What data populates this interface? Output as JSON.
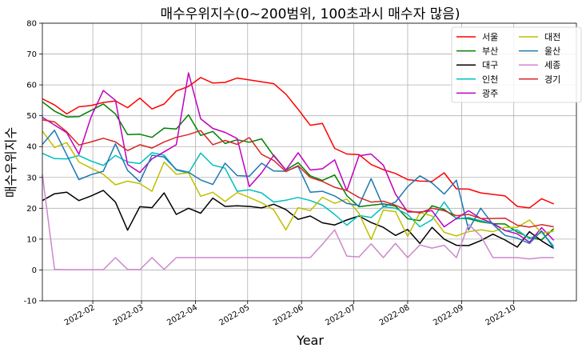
{
  "chart_data": {
    "type": "line",
    "title": "매수우위지수(0~200범위, 100초과시 매수자 많음)",
    "xlabel": "Year",
    "ylabel": "매수우위지수",
    "ylim": [
      -10,
      80
    ],
    "yticks": [
      -10,
      0,
      10,
      20,
      30,
      40,
      50,
      60,
      70,
      80
    ],
    "xlim": [
      "2022-01-03",
      "2022-11-06"
    ],
    "xticks": [
      {
        "date": "2022-02-01",
        "label": "2022-02"
      },
      {
        "date": "2022-03-01",
        "label": "2022-03"
      },
      {
        "date": "2022-04-01",
        "label": "2022-04"
      },
      {
        "date": "2022-05-01",
        "label": "2022-05"
      },
      {
        "date": "2022-06-01",
        "label": "2022-06"
      },
      {
        "date": "2022-07-01",
        "label": "2022-07"
      },
      {
        "date": "2022-08-01",
        "label": "2022-08"
      },
      {
        "date": "2022-09-01",
        "label": "2022-09"
      },
      {
        "date": "2022-10-01",
        "label": "2022-10"
      }
    ],
    "grid": true,
    "legend_position": "top-right",
    "x": [
      "2022-01-03",
      "2022-01-10",
      "2022-01-17",
      "2022-01-24",
      "2022-01-31",
      "2022-02-07",
      "2022-02-14",
      "2022-02-21",
      "2022-02-28",
      "2022-03-07",
      "2022-03-14",
      "2022-03-21",
      "2022-03-28",
      "2022-04-04",
      "2022-04-11",
      "2022-04-18",
      "2022-04-25",
      "2022-05-02",
      "2022-05-09",
      "2022-05-16",
      "2022-05-23",
      "2022-05-30",
      "2022-06-06",
      "2022-06-13",
      "2022-06-20",
      "2022-06-27",
      "2022-07-04",
      "2022-07-11",
      "2022-07-18",
      "2022-07-25",
      "2022-08-01",
      "2022-08-08",
      "2022-08-15",
      "2022-08-22",
      "2022-08-29",
      "2022-09-05",
      "2022-09-12",
      "2022-09-19",
      "2022-09-26",
      "2022-10-03",
      "2022-10-10",
      "2022-10-17",
      "2022-10-24"
    ],
    "series": [
      {
        "name": "서울",
        "color": "#ff0000",
        "values": [
          55.5,
          53.5,
          50.6,
          52.9,
          53.3,
          54.3,
          54.8,
          52.6,
          55.7,
          52.2,
          53.8,
          58.0,
          59.5,
          62.4,
          60.6,
          60.8,
          62.2,
          61.6,
          61.0,
          60.4,
          57.0,
          52.1,
          46.9,
          47.5,
          39.4,
          37.6,
          37.4,
          34.2,
          32.5,
          31.3,
          29.3,
          28.8,
          28.7,
          31.5,
          26.3,
          26.2,
          25.0,
          24.5,
          24.0,
          20.6,
          20.1,
          23.1,
          21.4
        ]
      },
      {
        "name": "부산",
        "color": "#008000",
        "values": [
          54.5,
          51.5,
          49.6,
          49.7,
          51.7,
          53.8,
          50.6,
          43.9,
          44.0,
          43.0,
          46.0,
          45.7,
          50.3,
          43.6,
          44.9,
          41.0,
          42.2,
          41.4,
          42.5,
          37.0,
          32.4,
          34.8,
          30.5,
          29.0,
          30.8,
          24.1,
          20.5,
          21.0,
          21.4,
          20.7,
          16.6,
          16.0,
          20.8,
          19.6,
          16.8,
          16.6,
          15.6,
          15.0,
          14.9,
          12.3,
          10.5,
          9.8,
          13.4
        ]
      },
      {
        "name": "대구",
        "color": "#000000",
        "values": [
          22.5,
          24.7,
          25.2,
          22.5,
          24.0,
          25.8,
          22.0,
          12.9,
          20.5,
          20.2,
          25.0,
          18.0,
          20.0,
          18.4,
          23.3,
          20.6,
          20.8,
          20.6,
          20.1,
          21.3,
          19.6,
          16.4,
          17.5,
          15.3,
          14.6,
          16.2,
          17.5,
          15.4,
          13.8,
          11.2,
          13.1,
          8.6,
          13.8,
          10.0,
          8.0,
          7.9,
          9.5,
          11.6,
          9.7,
          7.4,
          12.4,
          9.4,
          7.0
        ]
      },
      {
        "name": "인천",
        "color": "#00bfbf",
        "values": [
          37.8,
          36.1,
          36.0,
          37.1,
          35.3,
          33.9,
          37.1,
          35.0,
          34.5,
          38.0,
          37.2,
          32.4,
          31.4,
          37.9,
          34.0,
          33.0,
          25.5,
          26.0,
          25.0,
          22.0,
          22.6,
          23.5,
          22.5,
          21.0,
          18.0,
          14.5,
          17.7,
          17.0,
          20.5,
          20.0,
          18.0,
          14.0,
          16.3,
          22.0,
          16.5,
          17.0,
          16.0,
          15.0,
          12.7,
          13.0,
          10.1,
          12.2,
          7.7
        ]
      },
      {
        "name": "광주",
        "color": "#bf00bf",
        "values": [
          49.5,
          47.0,
          44.5,
          37.5,
          49.6,
          58.2,
          55.0,
          34.2,
          31.6,
          36.0,
          38.3,
          40.6,
          63.9,
          49.0,
          45.9,
          44.6,
          42.6,
          27.0,
          31.5,
          37.2,
          32.4,
          38.0,
          32.4,
          32.8,
          35.7,
          25.7,
          37.0,
          37.6,
          34.0,
          24.6,
          18.8,
          18.8,
          19.2,
          14.0,
          16.7,
          19.2,
          16.7,
          15.1,
          12.8,
          11.7,
          9.0,
          13.7,
          9.6
        ]
      },
      {
        "name": "대전",
        "color": "#bfbf00",
        "values": [
          45.0,
          39.7,
          41.3,
          35.0,
          33.0,
          31.0,
          27.6,
          28.8,
          28.0,
          25.5,
          35.0,
          31.0,
          31.5,
          23.9,
          25.2,
          22.2,
          25.1,
          23.5,
          21.8,
          19.5,
          13.0,
          20.2,
          19.2,
          23.6,
          21.6,
          23.0,
          18.4,
          9.9,
          19.4,
          18.9,
          10.9,
          18.6,
          17.5,
          12.2,
          11.0,
          12.4,
          13.0,
          12.4,
          13.8,
          13.8,
          16.2,
          12.0,
          12.5
        ]
      },
      {
        "name": "울산",
        "color": "#1f77b4",
        "values": [
          40.7,
          45.3,
          37.3,
          29.3,
          30.9,
          32.0,
          40.9,
          32.3,
          28.6,
          37.2,
          36.6,
          32.6,
          31.7,
          29.2,
          27.7,
          34.6,
          30.6,
          30.4,
          34.6,
          32.1,
          32.0,
          33.6,
          25.2,
          25.5,
          24.0,
          21.6,
          20.9,
          29.6,
          20.5,
          22.0,
          27.0,
          30.5,
          28.2,
          24.6,
          29.1,
          13.0,
          20.0,
          14.8,
          11.2,
          10.3,
          8.6,
          12.7,
          7.0
        ]
      },
      {
        "name": "세종",
        "color": "#cc88cc",
        "values": [
          31.0,
          0.2,
          0.1,
          0.1,
          0.1,
          0.1,
          4.0,
          0.2,
          0.1,
          4.0,
          0.2,
          4.0,
          4.0,
          4.0,
          4.0,
          4.0,
          4.0,
          4.0,
          4.0,
          4.0,
          4.0,
          4.0,
          4.0,
          8.3,
          13.0,
          4.5,
          4.2,
          8.5,
          4.0,
          8.6,
          4.0,
          8.1,
          7.1,
          8.0,
          4.0,
          14.8,
          11.0,
          4.0,
          4.0,
          4.0,
          3.6,
          4.0,
          4.0
        ]
      },
      {
        "name": "경기",
        "color": "#d62728",
        "values": [
          48.7,
          48.0,
          44.8,
          40.5,
          41.5,
          42.7,
          41.5,
          38.7,
          40.6,
          39.5,
          41.5,
          43.0,
          43.9,
          45.2,
          40.6,
          42.0,
          40.7,
          42.9,
          37.5,
          35.5,
          31.9,
          33.8,
          30.0,
          28.7,
          26.8,
          25.8,
          23.5,
          22.0,
          22.3,
          21.0,
          19.2,
          18.5,
          20.0,
          19.2,
          17.6,
          18.0,
          16.7,
          16.7,
          16.8,
          14.5,
          13.9,
          14.7,
          14.0
        ]
      }
    ]
  }
}
